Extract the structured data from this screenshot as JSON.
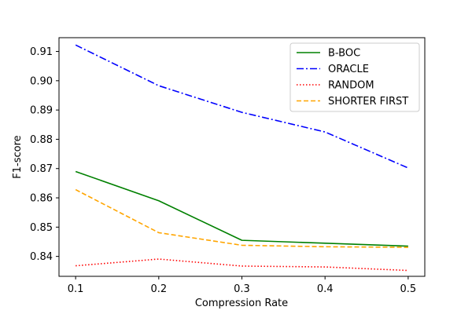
{
  "chart_data": {
    "type": "line",
    "title": "",
    "xlabel": "Compression Rate",
    "ylabel": "F1-score",
    "x": [
      0.1,
      0.2,
      0.3,
      0.4,
      0.5
    ],
    "xticks": [
      "0.1",
      "0.2",
      "0.3",
      "0.4",
      "0.5"
    ],
    "yticks": [
      "0.84",
      "0.85",
      "0.86",
      "0.87",
      "0.88",
      "0.89",
      "0.90",
      "0.91"
    ],
    "xlim": [
      0.08,
      0.52
    ],
    "ylim": [
      0.8332,
      0.9147
    ],
    "grid": false,
    "legend_position": "top-right",
    "series": [
      {
        "name": "B-BOC",
        "values": [
          0.869,
          0.859,
          0.8455,
          0.8445,
          0.8435
        ],
        "color": "#008000",
        "style": "solid"
      },
      {
        "name": "ORACLE",
        "values": [
          0.9122,
          0.8983,
          0.8892,
          0.8825,
          0.8702
        ],
        "color": "#0000ff",
        "style": "dashdot"
      },
      {
        "name": "RANDOM",
        "values": [
          0.8368,
          0.8391,
          0.8367,
          0.8364,
          0.8352
        ],
        "color": "#ff0000",
        "style": "dotted"
      },
      {
        "name": "SHORTER FIRST",
        "values": [
          0.8628,
          0.8481,
          0.8438,
          0.8433,
          0.8431
        ],
        "color": "#ffa500",
        "style": "dashed"
      }
    ]
  }
}
